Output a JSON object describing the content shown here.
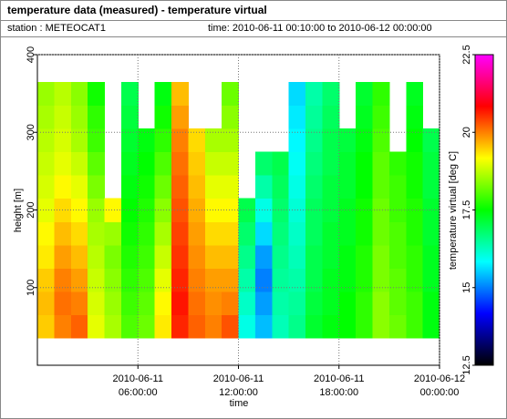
{
  "chart_data": {
    "type": "heatmap",
    "title": "temperature data (measured) - temperature virtual",
    "station": "station : METEOCAT1",
    "time_range": "time: 2010-06-11 00:10:00 to 2010-06-12 00:00:00",
    "xlabel": "time",
    "ylabel": "height [m]",
    "colorbar_label": "temperature virtual [deg C]",
    "x": [
      "2010-06-11 00:30:00",
      "2010-06-11 01:30:00",
      "2010-06-11 02:30:00",
      "2010-06-11 03:30:00",
      "2010-06-11 04:30:00",
      "2010-06-11 05:30:00",
      "2010-06-11 06:30:00",
      "2010-06-11 07:30:00",
      "2010-06-11 08:30:00",
      "2010-06-11 09:30:00",
      "2010-06-11 10:30:00",
      "2010-06-11 11:30:00",
      "2010-06-11 12:30:00",
      "2010-06-11 13:30:00",
      "2010-06-11 14:30:00",
      "2010-06-11 15:30:00",
      "2010-06-11 16:30:00",
      "2010-06-11 17:30:00",
      "2010-06-11 18:30:00",
      "2010-06-11 19:30:00",
      "2010-06-11 20:30:00",
      "2010-06-11 21:30:00",
      "2010-06-11 22:30:00",
      "2010-06-11 23:30:00"
    ],
    "y": [
      50,
      80,
      110,
      140,
      170,
      200,
      230,
      260,
      290,
      320,
      350
    ],
    "values": [
      [
        19.5,
        19.6,
        19.5,
        19.3,
        19.2,
        19.0,
        18.9,
        18.8,
        18.7,
        18.6,
        18.5
      ],
      [
        20.0,
        20.1,
        20.0,
        19.8,
        19.6,
        19.4,
        19.2,
        19.0,
        18.9,
        18.8,
        18.7
      ],
      [
        20.2,
        20.0,
        19.8,
        19.6,
        19.4,
        19.2,
        19.0,
        18.8,
        18.6,
        18.5,
        18.4
      ],
      [
        19.0,
        18.9,
        18.8,
        18.7,
        18.6,
        18.5,
        18.3,
        18.1,
        17.9,
        17.8,
        17.6
      ],
      [
        18.6,
        18.5,
        18.4,
        18.3,
        18.5,
        19.2,
        null,
        null,
        null,
        null,
        null
      ],
      [
        18.0,
        17.9,
        17.8,
        17.7,
        17.6,
        17.5,
        17.4,
        17.3,
        17.2,
        17.1,
        17.0
      ],
      [
        18.2,
        18.1,
        18.0,
        17.9,
        17.8,
        17.7,
        17.6,
        17.5,
        17.4,
        null,
        null
      ],
      [
        19.3,
        19.2,
        19.0,
        18.8,
        18.6,
        18.4,
        18.2,
        18.0,
        17.8,
        17.6,
        17.4
      ],
      [
        20.6,
        20.7,
        20.6,
        20.5,
        20.4,
        20.3,
        20.2,
        20.1,
        20.0,
        19.8,
        19.6
      ],
      [
        20.2,
        20.1,
        20.0,
        19.9,
        19.8,
        19.7,
        19.6,
        19.5,
        19.4,
        null,
        null
      ],
      [
        20.0,
        19.9,
        19.8,
        19.6,
        19.4,
        19.2,
        19.0,
        18.8,
        18.6,
        null,
        null
      ],
      [
        20.3,
        20.0,
        19.8,
        19.6,
        19.4,
        19.2,
        19.0,
        18.8,
        18.6,
        18.4,
        18.2
      ],
      [
        16.0,
        16.2,
        16.4,
        16.6,
        16.8,
        17.0,
        null,
        null,
        null,
        null,
        null
      ],
      [
        15.4,
        15.2,
        15.0,
        15.2,
        15.6,
        16.0,
        16.4,
        16.8,
        null,
        null,
        null
      ],
      [
        16.3,
        16.4,
        16.5,
        16.6,
        16.7,
        16.8,
        16.9,
        17.0,
        null,
        null,
        null
      ],
      [
        16.6,
        16.5,
        16.4,
        16.3,
        16.2,
        16.1,
        16.0,
        15.9,
        15.8,
        15.7,
        15.6
      ],
      [
        17.2,
        17.1,
        17.0,
        17.0,
        16.9,
        16.9,
        16.8,
        16.7,
        16.6,
        16.5,
        16.4
      ],
      [
        17.4,
        17.3,
        17.3,
        17.2,
        17.2,
        17.1,
        17.1,
        17.0,
        17.0,
        16.9,
        16.8
      ],
      [
        17.5,
        17.5,
        17.4,
        17.4,
        17.3,
        17.3,
        17.2,
        17.2,
        17.1,
        null,
        null
      ],
      [
        17.8,
        17.8,
        17.7,
        17.7,
        17.6,
        17.6,
        17.5,
        17.5,
        17.4,
        17.3,
        17.2
      ],
      [
        18.4,
        18.4,
        18.3,
        18.3,
        18.2,
        18.2,
        18.1,
        18.1,
        18.0,
        17.9,
        17.8
      ],
      [
        18.2,
        18.1,
        18.1,
        18.0,
        18.0,
        17.9,
        17.9,
        17.8,
        null,
        null,
        null
      ],
      [
        17.9,
        17.9,
        17.8,
        17.8,
        17.7,
        17.7,
        17.6,
        17.6,
        17.5,
        17.4,
        17.3
      ],
      [
        17.4,
        17.4,
        17.3,
        17.3,
        17.2,
        17.2,
        17.1,
        17.1,
        17.0,
        null,
        null
      ]
    ],
    "xlim": [
      "2010-06-11 00:00:00",
      "2010-06-12 00:00:00"
    ],
    "xticks": [
      {
        "value": "2010-06-11 06:00:00",
        "label": [
          "2010-06-11",
          "06:00:00"
        ]
      },
      {
        "value": "2010-06-11 12:00:00",
        "label": [
          "2010-06-11",
          "12:00:00"
        ]
      },
      {
        "value": "2010-06-11 18:00:00",
        "label": [
          "2010-06-11",
          "18:00:00"
        ]
      },
      {
        "value": "2010-06-12 00:00:00",
        "label": [
          "2010-06-12",
          "00:00:00"
        ]
      }
    ],
    "ylim": [
      0,
      400
    ],
    "yticks": [
      100,
      200,
      300,
      400
    ],
    "clim": [
      12.5,
      22.5
    ],
    "cticks": [
      12.5,
      15,
      17.5,
      20,
      22.5
    ],
    "colormap": [
      "#000000",
      "#0000ff",
      "#00ffff",
      "#00ff00",
      "#ffff00",
      "#ff0000",
      "#ff00ff"
    ],
    "grid": true
  }
}
